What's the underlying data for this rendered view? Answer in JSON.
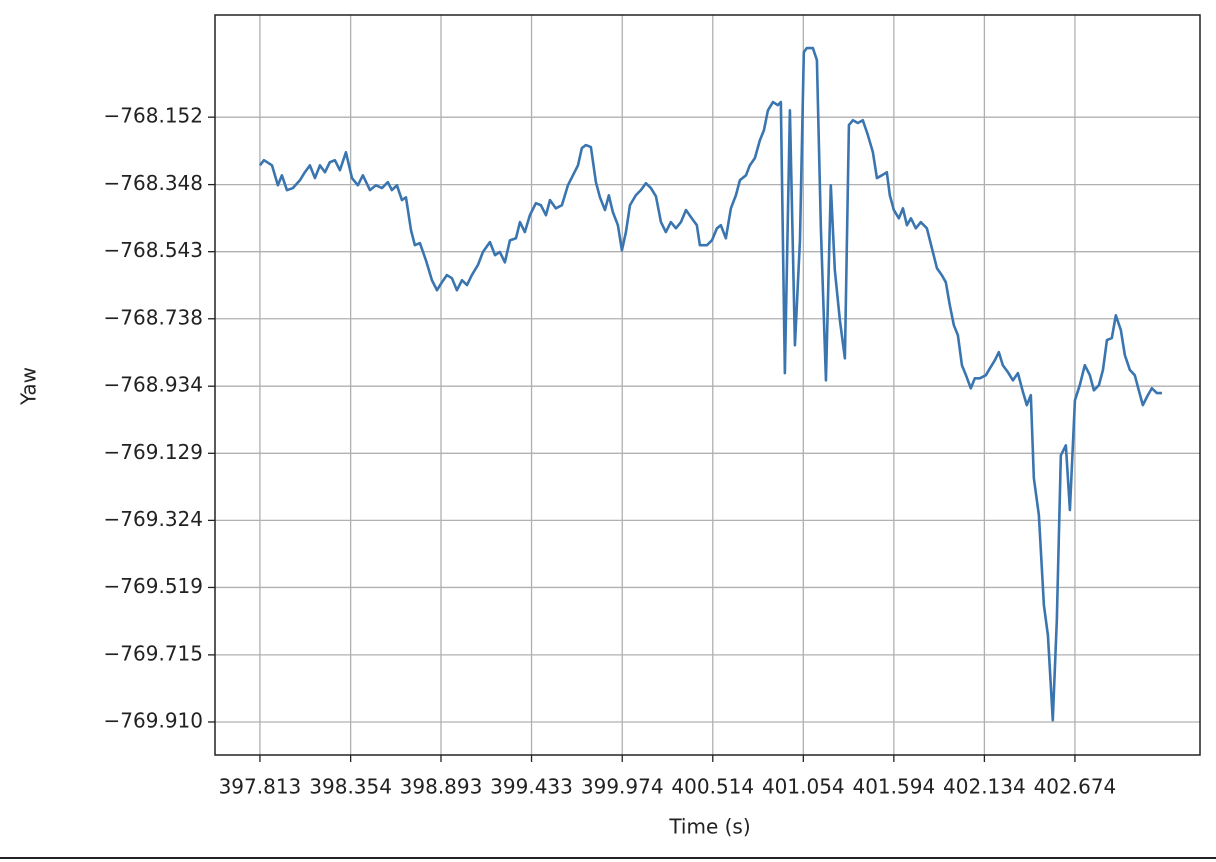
{
  "chart_data": {
    "type": "line",
    "x_label": "Time (s)",
    "y_label": "Yaw",
    "color": "#3a75b0",
    "grid": true,
    "xlim": [
      397.545,
      403.42
    ],
    "ylim": [
      -770.006,
      -767.855
    ],
    "xticks": [
      397.813,
      398.354,
      398.893,
      399.433,
      399.974,
      400.514,
      401.054,
      401.594,
      402.134,
      402.674
    ],
    "yticks": [
      {
        "value": -768.152,
        "label": "−768.152"
      },
      {
        "value": -768.348,
        "label": "−768.348"
      },
      {
        "value": -768.543,
        "label": "−768.543"
      },
      {
        "value": -768.738,
        "label": "−768.738"
      },
      {
        "value": -768.934,
        "label": "−768.934"
      },
      {
        "value": -769.129,
        "label": "−769.129"
      },
      {
        "value": -769.324,
        "label": "−769.324"
      },
      {
        "value": -769.519,
        "label": "−769.519"
      },
      {
        "value": -769.715,
        "label": "−769.715"
      },
      {
        "value": -769.91,
        "label": "−769.910"
      }
    ],
    "x": [
      397.813,
      397.837,
      397.885,
      397.92,
      397.944,
      397.974,
      398.01,
      398.052,
      398.081,
      398.111,
      398.141,
      398.171,
      398.201,
      398.23,
      398.26,
      398.29,
      398.326,
      398.362,
      398.397,
      398.427,
      398.469,
      398.505,
      398.541,
      398.576,
      398.6,
      398.63,
      398.66,
      398.684,
      398.714,
      398.737,
      398.767,
      398.803,
      398.839,
      398.869,
      398.898,
      398.928,
      398.958,
      398.988,
      399.018,
      399.048,
      399.077,
      399.113,
      399.143,
      399.185,
      399.215,
      399.244,
      399.274,
      399.304,
      399.34,
      399.364,
      399.393,
      399.423,
      399.459,
      399.489,
      399.519,
      399.543,
      399.578,
      399.614,
      399.65,
      399.68,
      399.71,
      399.733,
      399.757,
      399.787,
      399.817,
      399.841,
      399.871,
      399.894,
      399.918,
      399.948,
      399.972,
      399.996,
      400.02,
      400.055,
      400.085,
      400.115,
      400.145,
      400.175,
      400.205,
      400.234,
      400.264,
      400.294,
      400.324,
      400.354,
      400.389,
      400.419,
      400.437,
      400.479,
      400.509,
      400.539,
      400.562,
      400.592,
      400.622,
      400.652,
      400.676,
      400.712,
      400.735,
      400.765,
      400.795,
      400.819,
      400.843,
      400.873,
      400.902,
      400.92,
      400.944,
      400.974,
      401.004,
      401.034,
      401.057,
      401.075,
      401.111,
      401.135,
      401.159,
      401.189,
      401.218,
      401.242,
      401.272,
      401.302,
      401.326,
      401.35,
      401.379,
      401.409,
      401.439,
      401.469,
      401.493,
      401.523,
      401.552,
      401.57,
      401.594,
      401.624,
      401.648,
      401.672,
      401.696,
      401.725,
      401.755,
      401.791,
      401.821,
      401.851,
      401.88,
      401.904,
      401.928,
      401.952,
      401.976,
      402.0,
      402.024,
      402.053,
      402.077,
      402.107,
      402.143,
      402.167,
      402.197,
      402.22,
      402.244,
      402.274,
      402.304,
      402.334,
      402.364,
      402.387,
      402.411,
      402.429,
      402.459,
      402.489,
      402.513,
      402.542,
      402.566,
      402.59,
      402.62,
      402.644,
      402.674,
      402.703,
      402.733,
      402.763,
      402.787,
      402.817,
      402.841,
      402.865,
      402.894,
      402.918,
      402.948,
      402.972,
      403.002,
      403.031,
      403.055,
      403.079,
      403.109,
      403.133,
      403.163,
      403.193
    ],
    "series": [
      {
        "values": [
          -768.292,
          -768.277,
          -768.292,
          -768.35,
          -768.321,
          -768.364,
          -768.358,
          -768.335,
          -768.312,
          -768.292,
          -768.329,
          -768.292,
          -768.312,
          -768.283,
          -768.277,
          -768.306,
          -768.254,
          -768.329,
          -768.35,
          -768.321,
          -768.364,
          -768.35,
          -768.358,
          -768.341,
          -768.364,
          -768.35,
          -768.393,
          -768.385,
          -768.48,
          -768.524,
          -768.518,
          -768.568,
          -768.626,
          -768.655,
          -768.632,
          -768.611,
          -768.62,
          -768.655,
          -768.626,
          -768.64,
          -768.611,
          -768.582,
          -768.544,
          -768.515,
          -768.553,
          -768.544,
          -768.574,
          -768.51,
          -768.504,
          -768.457,
          -768.486,
          -768.437,
          -768.402,
          -768.408,
          -768.437,
          -768.393,
          -768.417,
          -768.408,
          -768.35,
          -768.321,
          -768.292,
          -768.242,
          -768.233,
          -768.239,
          -768.341,
          -768.385,
          -768.422,
          -768.379,
          -768.428,
          -768.466,
          -768.539,
          -768.486,
          -768.408,
          -768.379,
          -768.364,
          -768.344,
          -768.358,
          -768.382,
          -768.457,
          -768.486,
          -768.457,
          -768.475,
          -768.457,
          -768.422,
          -768.446,
          -768.466,
          -768.524,
          -768.524,
          -768.51,
          -768.475,
          -768.466,
          -768.504,
          -768.417,
          -768.379,
          -768.335,
          -768.321,
          -768.292,
          -768.271,
          -768.219,
          -768.19,
          -768.132,
          -768.108,
          -768.117,
          -768.108,
          -768.896,
          -768.132,
          -768.815,
          -768.51,
          -767.963,
          -767.951,
          -767.951,
          -767.986,
          -768.48,
          -768.917,
          -768.35,
          -768.597,
          -768.742,
          -768.853,
          -768.175,
          -768.161,
          -768.169,
          -768.161,
          -768.204,
          -768.254,
          -768.329,
          -768.321,
          -768.312,
          -768.379,
          -768.422,
          -768.446,
          -768.417,
          -768.466,
          -768.446,
          -768.475,
          -768.457,
          -768.475,
          -768.533,
          -768.591,
          -768.611,
          -768.632,
          -768.699,
          -768.757,
          -768.786,
          -768.873,
          -768.902,
          -768.94,
          -768.911,
          -768.911,
          -768.902,
          -768.882,
          -768.858,
          -768.835,
          -768.873,
          -768.893,
          -768.917,
          -768.896,
          -768.951,
          -768.989,
          -768.96,
          -769.201,
          -769.309,
          -769.571,
          -769.658,
          -769.905,
          -769.614,
          -769.135,
          -769.106,
          -769.294,
          -768.975,
          -768.931,
          -768.873,
          -768.902,
          -768.946,
          -768.931,
          -768.887,
          -768.8,
          -768.794,
          -768.728,
          -768.771,
          -768.844,
          -768.887,
          -768.902,
          -768.946,
          -768.989,
          -768.96,
          -768.94,
          -768.954,
          -768.954
        ]
      }
    ]
  }
}
